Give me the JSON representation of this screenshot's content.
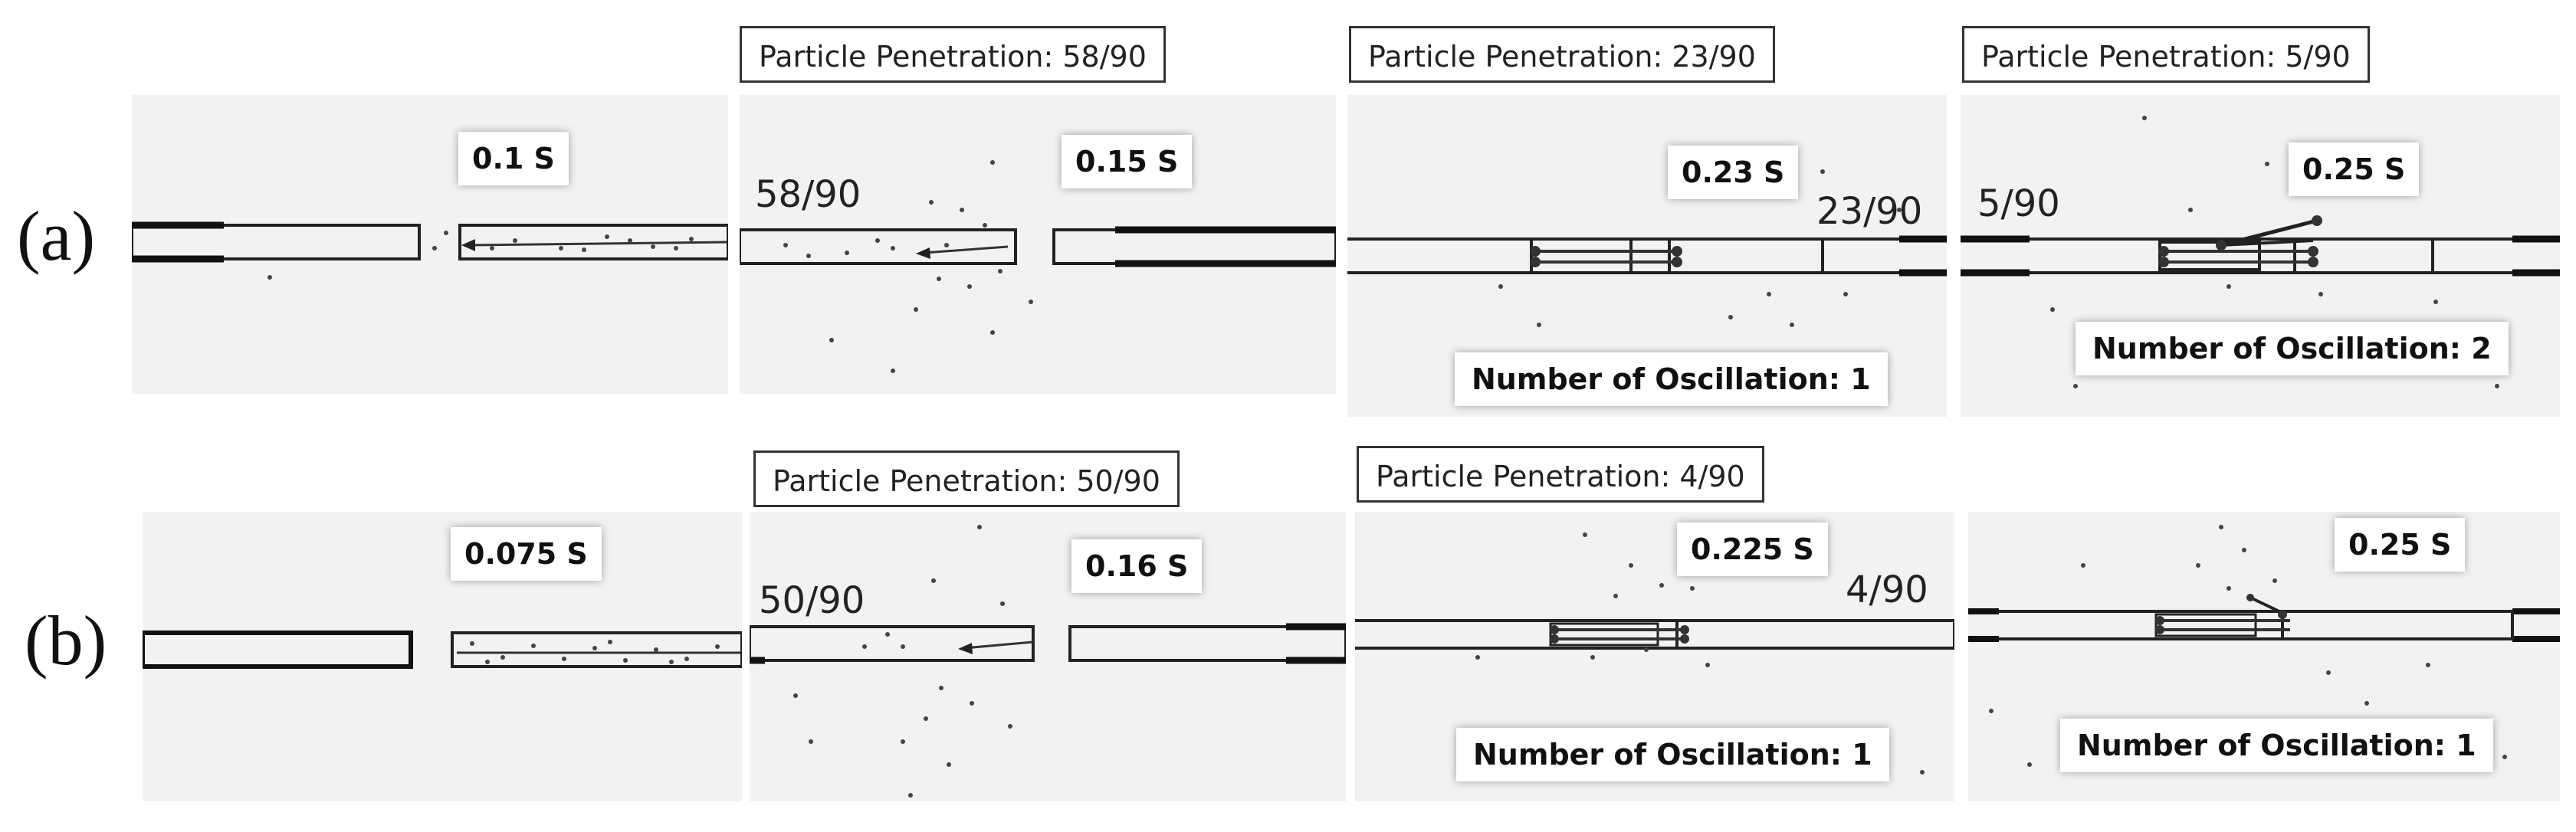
{
  "rows": [
    {
      "label": "(a)",
      "panels": [
        {
          "time": "0.1 S",
          "penetration": "",
          "count": "",
          "oscillation": ""
        },
        {
          "time": "0.15 S",
          "penetration": "Particle Penetration: 58/90",
          "count": "58/90",
          "oscillation": ""
        },
        {
          "time": "0.23 S",
          "penetration": "Particle Penetration: 23/90",
          "count": "23/90",
          "oscillation": "Number of Oscillation: 1"
        },
        {
          "time": "0.25 S",
          "penetration": "Particle Penetration: 5/90",
          "count": "5/90",
          "oscillation": "Number of Oscillation: 2"
        }
      ]
    },
    {
      "label": "(b)",
      "panels": [
        {
          "time": "0.075 S",
          "penetration": "",
          "count": "",
          "oscillation": ""
        },
        {
          "time": "0.16 S",
          "penetration": "Particle Penetration: 50/90",
          "count": "50/90",
          "oscillation": ""
        },
        {
          "time": "0.225 S",
          "penetration": "Particle Penetration: 4/90",
          "count": "4/90",
          "oscillation": "Number of Oscillation: 1"
        },
        {
          "time": "0.25 S",
          "penetration": "",
          "count": "",
          "oscillation": "Number of Oscillation: 1"
        }
      ]
    }
  ]
}
